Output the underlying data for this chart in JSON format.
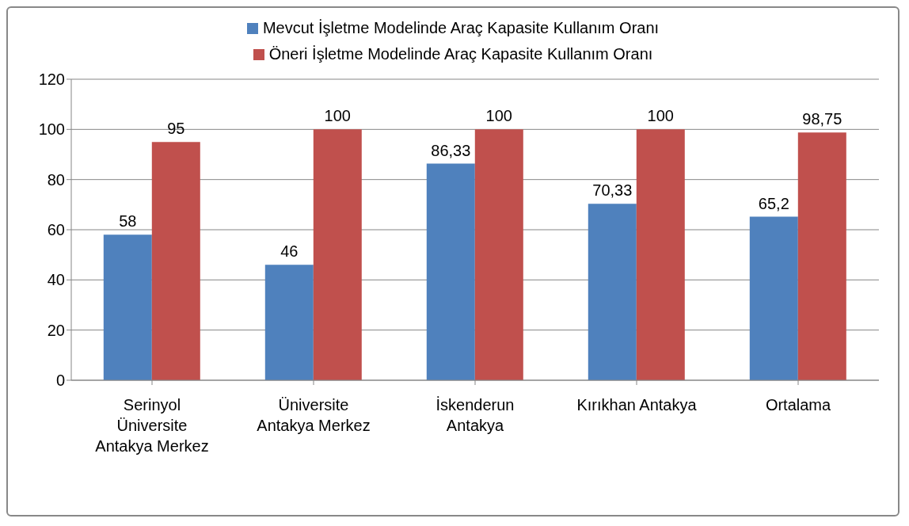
{
  "chart_data": {
    "type": "bar",
    "categories": [
      "Serinyol Üniversite Antakya Merkez",
      "Üniversite Antakya Merkez",
      "İskenderun Antakya",
      "Kırıkhan Antakya",
      "Ortalama"
    ],
    "series": [
      {
        "name": "Mevcut İşletme Modelinde Araç Kapasite Kullanım Oranı",
        "color": "#4f81bd",
        "values": [
          58,
          46,
          86.33,
          70.33,
          65.2
        ],
        "value_labels": [
          "58",
          "46",
          "86,33",
          "70,33",
          "65,2"
        ]
      },
      {
        "name": "Öneri İşletme Modelinde Araç Kapasite Kullanım Oranı",
        "color": "#c0504d",
        "values": [
          95,
          100,
          100,
          100,
          98.75
        ],
        "value_labels": [
          "95",
          "100",
          "100",
          "100",
          "98,75"
        ]
      }
    ],
    "ylim": [
      0,
      120
    ],
    "yticks": [
      0,
      20,
      40,
      60,
      80,
      100,
      120
    ],
    "grid": "y",
    "legend": "top"
  }
}
